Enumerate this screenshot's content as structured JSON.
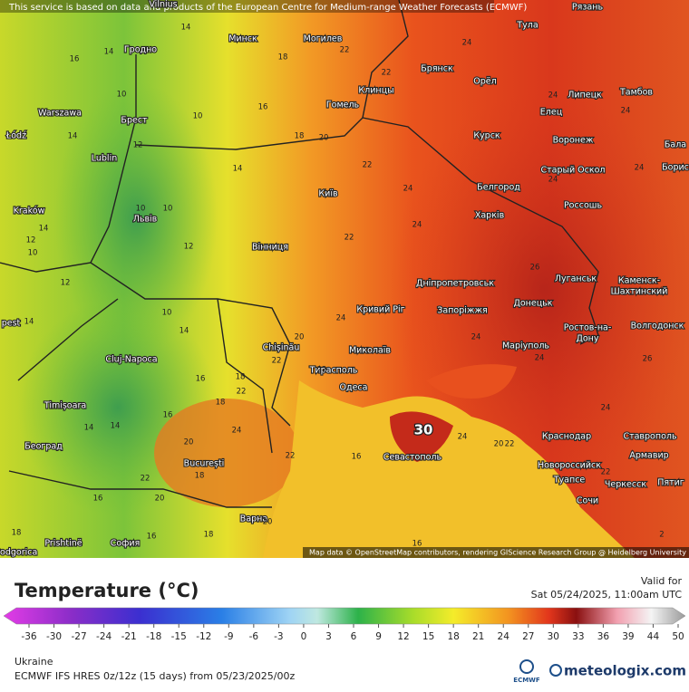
{
  "header": {
    "notice": "This service is based on data and products of the European Centre for Medium-range Weather Forecasts (ECMWF)"
  },
  "map": {
    "cities": [
      "Vilnius",
      "Минск",
      "Могилев",
      "Гродно",
      "Тула",
      "Рязань",
      "Брянск",
      "Клинцы",
      "Орёл",
      "Липецк",
      "Тамбов",
      "Warszawa",
      "Брест",
      "Гомель",
      "Елец",
      "Курск",
      "Воронеж",
      "Бала",
      "Łódź",
      "Lublin",
      "Старый Оскол",
      "Борис",
      "Київ",
      "Белгород",
      "Kraków",
      "Львів",
      "Харків",
      "Россошь",
      "Вінниця",
      "Луганськ",
      "Каменск-",
      "Шахтинский",
      "Дніпропетровськ",
      "Кривий Ріг",
      "Запоріжжя",
      "Донецьк",
      "Волгодонск",
      "Ростов-на-",
      "Дону",
      "Cluj-Napoca",
      "Chișinău",
      "Миколаїв",
      "Маріуполь",
      "Тирасполь",
      "Одеса",
      "Timișoara",
      "Краснодар",
      "Ставрополь",
      "Београд",
      "Севастополь",
      "Армавир",
      "Новороссийск",
      "București",
      "Туапсе",
      "Черкесск",
      "Пятиг",
      "Сочи",
      "Варна",
      "Prishtinë",
      "София",
      "Podgorica",
      "pest"
    ],
    "temperature_labels": [
      16,
      14,
      14,
      18,
      22,
      24,
      22,
      10,
      10,
      16,
      24,
      24,
      14,
      12,
      18,
      20,
      22,
      24,
      24,
      14,
      10,
      10,
      14,
      12,
      22,
      24,
      24,
      12,
      10,
      26,
      12,
      14,
      10,
      14,
      24,
      20,
      22,
      24,
      26,
      24,
      18,
      16,
      22,
      18,
      16,
      14,
      14,
      24,
      20,
      24,
      20,
      22,
      16,
      22,
      22,
      18,
      20,
      22,
      24,
      16,
      20,
      18,
      16,
      16,
      18,
      22,
      2
    ],
    "max_label": 30,
    "attribution": "Map data © OpenStreetMap contributors, rendering GIScience Research Group @ Heidelberg University"
  },
  "legend": {
    "title": "Temperature (°C)",
    "valid_label": "Valid for",
    "valid_time": "Sat 05/24/2025, 11:00am UTC",
    "ticks": [
      -36,
      -30,
      -27,
      -24,
      -21,
      -18,
      -15,
      -12,
      -9,
      -6,
      -3,
      0,
      3,
      6,
      9,
      12,
      15,
      18,
      21,
      24,
      27,
      30,
      33,
      36,
      39,
      44,
      50
    ]
  },
  "footer": {
    "region": "Ukraine",
    "model": "ECMWF IFS HRES 0z/12z (15 days) from  05/23/2025/00z",
    "ecmwf_logo": "ECMWF",
    "brand": "meteologix.com"
  }
}
